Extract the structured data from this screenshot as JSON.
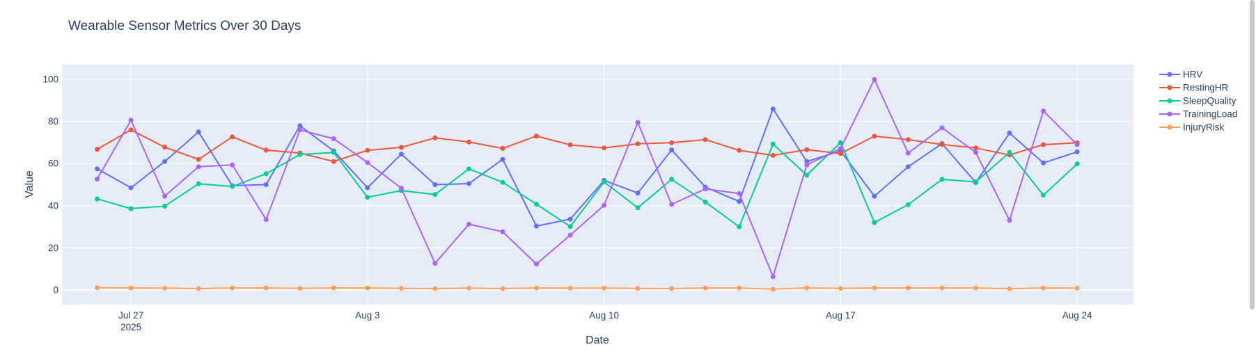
{
  "chart_data": {
    "type": "line",
    "title": "Wearable Sensor Metrics Over 30 Days",
    "xlabel": "Date",
    "ylabel": "Value",
    "x": [
      "2025-07-26",
      "2025-07-27",
      "2025-07-28",
      "2025-07-29",
      "2025-07-30",
      "2025-07-31",
      "2025-08-01",
      "2025-08-02",
      "2025-08-03",
      "2025-08-04",
      "2025-08-05",
      "2025-08-06",
      "2025-08-07",
      "2025-08-08",
      "2025-08-09",
      "2025-08-10",
      "2025-08-11",
      "2025-08-12",
      "2025-08-13",
      "2025-08-14",
      "2025-08-15",
      "2025-08-16",
      "2025-08-17",
      "2025-08-18",
      "2025-08-19",
      "2025-08-20",
      "2025-08-21",
      "2025-08-22",
      "2025-08-23",
      "2025-08-24"
    ],
    "xlim": [
      "2025-07-24T23:00",
      "2025-08-25T16:00"
    ],
    "ylim": [
      -7,
      107
    ],
    "x_ticks": [
      {
        "date": "2025-07-27",
        "label": "Jul 27",
        "sublabel": "2025"
      },
      {
        "date": "2025-08-03",
        "label": "Aug 3",
        "sublabel": ""
      },
      {
        "date": "2025-08-10",
        "label": "Aug 10",
        "sublabel": ""
      },
      {
        "date": "2025-08-17",
        "label": "Aug 17",
        "sublabel": ""
      },
      {
        "date": "2025-08-24",
        "label": "Aug 24",
        "sublabel": ""
      }
    ],
    "y_ticks": [
      0,
      20,
      40,
      60,
      80,
      100
    ],
    "grid": true,
    "legend_position": "top-right",
    "series": [
      {
        "name": "HRV",
        "color": "#636efa",
        "values": [
          57.5,
          48.5,
          61,
          75,
          49.5,
          50,
          78,
          66,
          48.5,
          64.5,
          50,
          50.5,
          62,
          30.3,
          33.6,
          52,
          46,
          66.5,
          48.8,
          42,
          86,
          61,
          66,
          44.5,
          58.5,
          69.5,
          51,
          74.5,
          60.3,
          65.6
        ]
      },
      {
        "name": "RestingHR",
        "color": "#ef553b",
        "values": [
          66.8,
          76,
          67.8,
          62,
          72.7,
          66.4,
          65,
          61,
          66.3,
          67.7,
          72.2,
          70.3,
          67.2,
          73.1,
          68.9,
          67.4,
          69.4,
          69.9,
          71.4,
          66.3,
          63.9,
          66.6,
          64.8,
          73,
          71.4,
          69.1,
          67.4,
          64.1,
          69,
          69.9
        ]
      },
      {
        "name": "SleepQuality",
        "color": "#00cc96",
        "values": [
          43.2,
          38.6,
          39.8,
          50.4,
          49.1,
          55.2,
          64.3,
          65.3,
          44,
          47.2,
          45.3,
          57.5,
          51.1,
          40.7,
          30.1,
          51.3,
          39,
          52.5,
          41.7,
          30,
          69.3,
          54.5,
          70,
          32,
          40.5,
          52.5,
          51.3,
          65.3,
          45,
          59.8
        ]
      },
      {
        "name": "TrainingLoad",
        "color": "#ab63fa",
        "values": [
          52.6,
          80.6,
          44.5,
          58.5,
          59.4,
          33.4,
          76,
          71.8,
          60.5,
          48.3,
          12.6,
          31.2,
          27.6,
          12.3,
          26,
          40.2,
          79.5,
          40.6,
          48,
          45.8,
          6.3,
          59.4,
          67.2,
          100,
          65,
          77,
          65.3,
          33,
          85,
          69
        ]
      },
      {
        "name": "InjuryRisk",
        "color": "#ffa15a",
        "values": [
          1.0,
          0.9,
          0.8,
          0.6,
          0.9,
          0.9,
          0.7,
          0.9,
          0.9,
          0.7,
          0.6,
          0.8,
          0.6,
          0.9,
          0.8,
          0.8,
          0.7,
          0.6,
          0.9,
          0.9,
          0.3,
          0.9,
          0.7,
          0.9,
          0.9,
          0.9,
          0.9,
          0.5,
          0.9,
          0.8
        ]
      }
    ]
  }
}
